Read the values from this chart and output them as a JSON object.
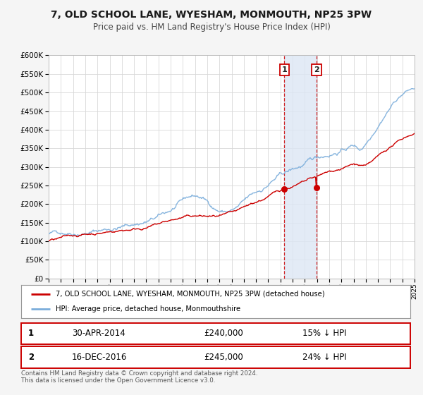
{
  "title": "7, OLD SCHOOL LANE, WYESHAM, MONMOUTH, NP25 3PW",
  "subtitle": "Price paid vs. HM Land Registry's House Price Index (HPI)",
  "legend_line1": "7, OLD SCHOOL LANE, WYESHAM, MONMOUTH, NP25 3PW (detached house)",
  "legend_line2": "HPI: Average price, detached house, Monmouthshire",
  "sale1_label": "1",
  "sale2_label": "2",
  "sale1_date": "30-APR-2014",
  "sale1_price": 240000,
  "sale1_hpi_text": "15% ↓ HPI",
  "sale2_date": "16-DEC-2016",
  "sale2_price": 245000,
  "sale2_hpi_text": "24% ↓ HPI",
  "footnote": "Contains HM Land Registry data © Crown copyright and database right 2024.\nThis data is licensed under the Open Government Licence v3.0.",
  "sale1_year": 2014.33,
  "sale2_year": 2016.96,
  "hpi_color": "#7aaddb",
  "price_color": "#cc0000",
  "background_color": "#f5f5f5",
  "plot_bg_color": "#ffffff",
  "grid_color": "#d8d8d8",
  "shade_color": "#dce6f4",
  "ylim": [
    0,
    600000
  ],
  "xlim_start": 1995,
  "xlim_end": 2025
}
